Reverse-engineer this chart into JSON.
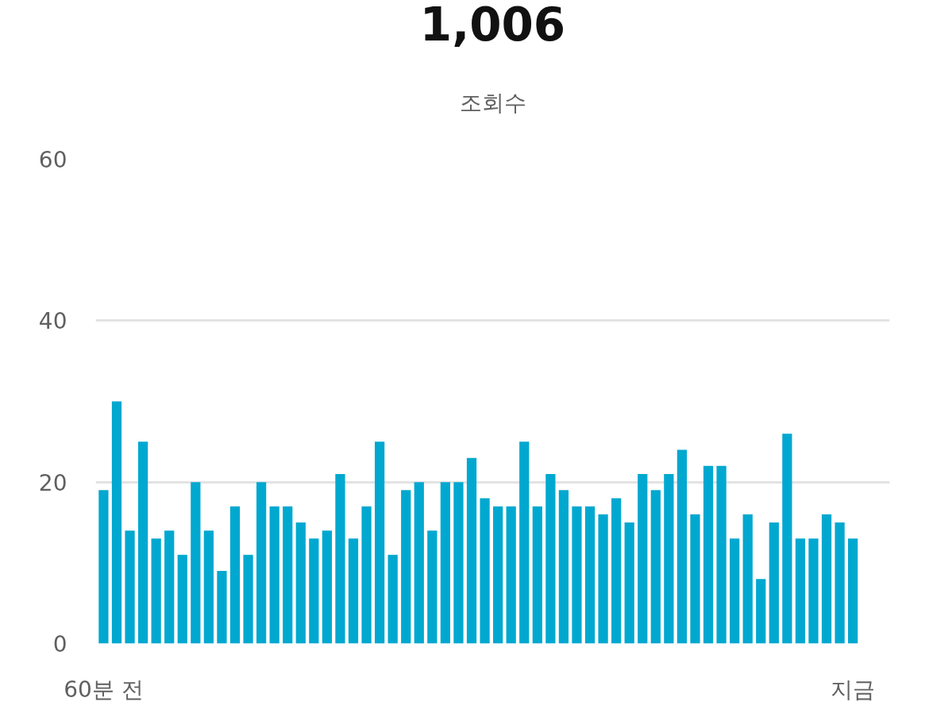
{
  "chart_data": {
    "type": "bar",
    "title": "1,006",
    "subtitle": "조회수",
    "categories": [
      "60분 전",
      null,
      null,
      null,
      null,
      null,
      null,
      null,
      null,
      null,
      null,
      null,
      null,
      null,
      null,
      null,
      null,
      null,
      null,
      null,
      null,
      null,
      null,
      null,
      null,
      null,
      null,
      null,
      null,
      null,
      null,
      null,
      null,
      null,
      null,
      null,
      null,
      null,
      null,
      null,
      null,
      null,
      null,
      null,
      null,
      null,
      null,
      null,
      null,
      null,
      null,
      null,
      null,
      null,
      null,
      null,
      null,
      "지금"
    ],
    "values": [
      19,
      30,
      14,
      25,
      13,
      14,
      11,
      20,
      14,
      9,
      17,
      11,
      20,
      17,
      17,
      15,
      13,
      14,
      21,
      13,
      17,
      25,
      11,
      19,
      20,
      14,
      20,
      20,
      23,
      18,
      17,
      17,
      25,
      17,
      21,
      19,
      17,
      17,
      16,
      18,
      15,
      21,
      19,
      21,
      24,
      16,
      22,
      22,
      13,
      16,
      8,
      15,
      26,
      13,
      13,
      16,
      15,
      13
    ],
    "color": "#00a8d0",
    "ylim": [
      0,
      60
    ],
    "yticks": [
      0,
      20,
      40,
      60
    ],
    "grid": "y"
  }
}
